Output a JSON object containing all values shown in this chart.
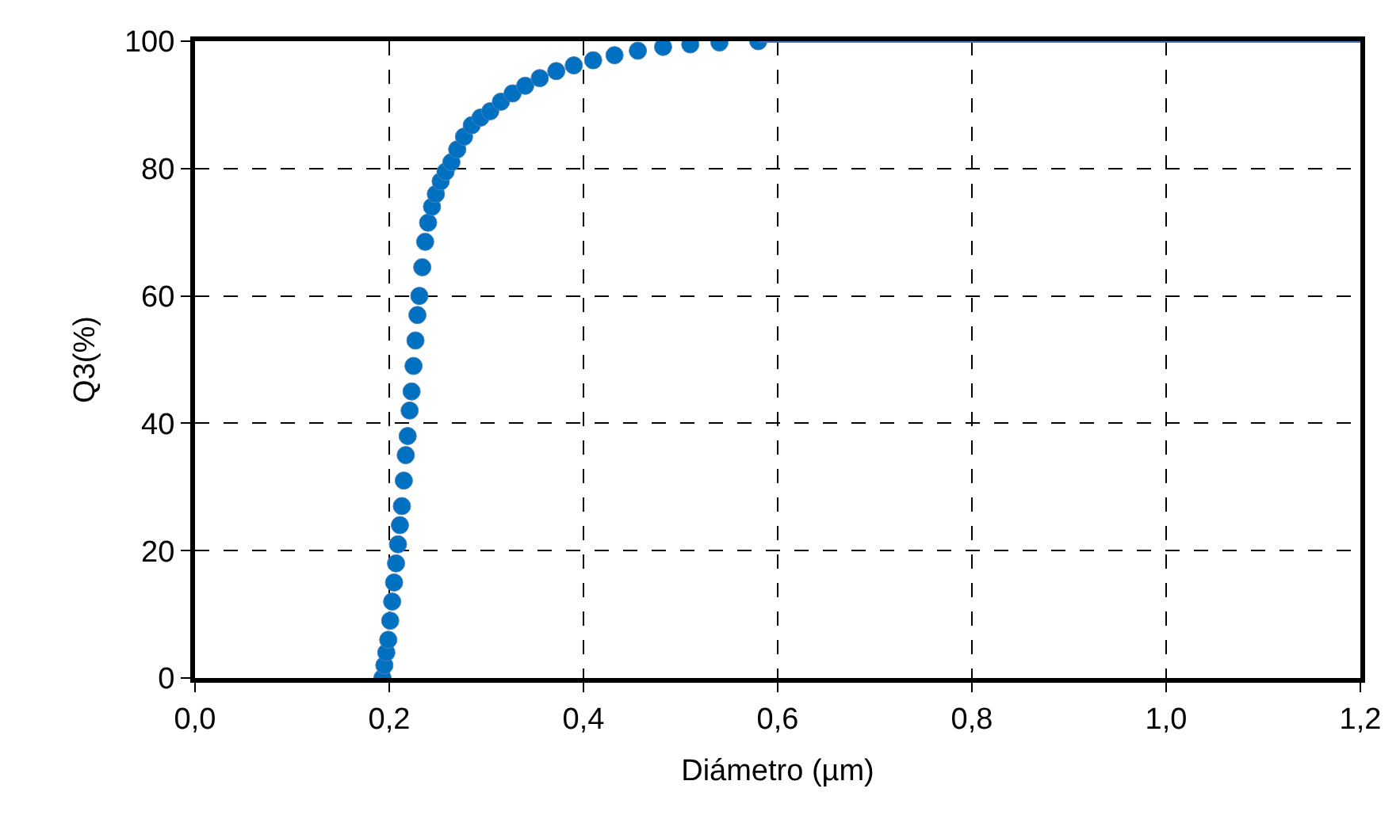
{
  "chart_data": {
    "type": "scatter",
    "xlabel": "Diámetro (µm)",
    "ylabel": "Q3(%)",
    "xlim": [
      0,
      1.2
    ],
    "ylim": [
      0,
      100
    ],
    "xticks": [
      {
        "value": 0,
        "label": "0,0"
      },
      {
        "value": 0.2,
        "label": "0,2"
      },
      {
        "value": 0.4,
        "label": "0,4"
      },
      {
        "value": 0.6,
        "label": "0,6"
      },
      {
        "value": 0.8,
        "label": "0,8"
      },
      {
        "value": 1.0,
        "label": "1,0"
      },
      {
        "value": 1.2,
        "label": "1,2"
      }
    ],
    "yticks": [
      0,
      20,
      40,
      60,
      80,
      100
    ],
    "grid": true,
    "series": [
      {
        "marker": "circle",
        "color": "#0070c0",
        "x": [
          0.193,
          0.195,
          0.197,
          0.199,
          0.201,
          0.203,
          0.205,
          0.207,
          0.209,
          0.211,
          0.213,
          0.215,
          0.217,
          0.219,
          0.221,
          0.223,
          0.225,
          0.227,
          0.229,
          0.231,
          0.234,
          0.237,
          0.24,
          0.244,
          0.248,
          0.253,
          0.258,
          0.264,
          0.27,
          0.277,
          0.285,
          0.294,
          0.304,
          0.315,
          0.327,
          0.34,
          0.355,
          0.372,
          0.39,
          0.41,
          0.432,
          0.456,
          0.482,
          0.51,
          0.54,
          0.58
        ],
        "values": [
          0,
          2,
          4,
          6,
          9,
          12,
          15,
          18,
          21,
          24,
          27,
          31,
          35,
          38,
          42,
          45,
          49,
          53,
          57,
          60,
          64.5,
          68.5,
          71.5,
          74,
          76,
          78,
          79.5,
          81,
          83,
          85,
          86.8,
          88,
          89,
          90.5,
          91.8,
          93,
          94.2,
          95.3,
          96.2,
          97,
          97.8,
          98.5,
          99.1,
          99.5,
          99.8,
          100
        ]
      },
      {
        "type": "line",
        "marker": "none",
        "color": "#4472c4",
        "x": [
          0.58,
          1.2
        ],
        "values": [
          100,
          100
        ]
      }
    ]
  }
}
